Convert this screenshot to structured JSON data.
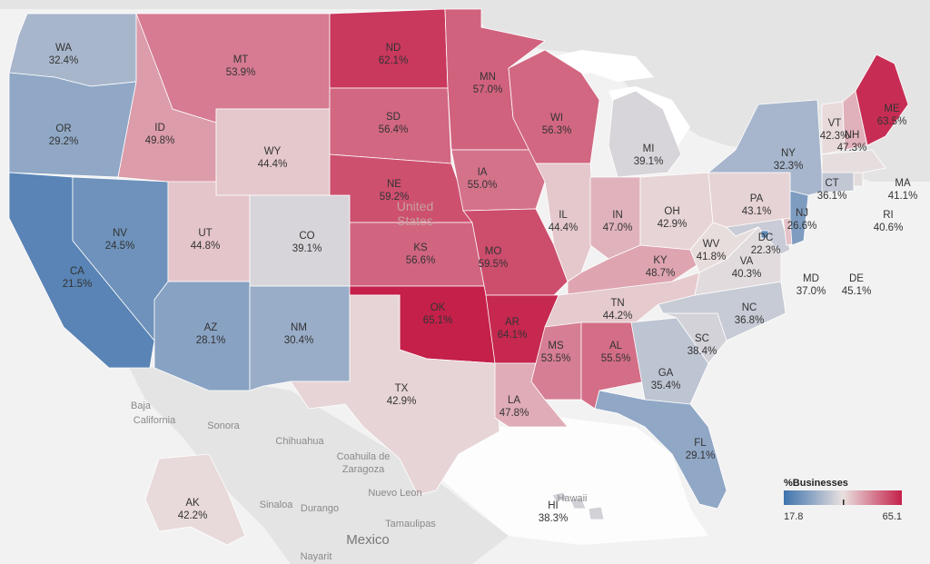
{
  "background_labels": {
    "baja": "Baja",
    "california": "California",
    "sonora": "Sonora",
    "chihuahua": "Chihuahua",
    "coahuila": "Coahuila de",
    "zaragoza": "Zaragoza",
    "nuevo_leon": "Nuevo Leon",
    "tamaulipas": "Tamaulipas",
    "sinaloa": "Sinaloa",
    "durango": "Durango",
    "nayarit": "Nayarit",
    "mexico": "Mexico",
    "united": "United",
    "states": "States",
    "hawaii": "Hawaii"
  },
  "legend": {
    "title": "%Businesses",
    "min_label": "17.8",
    "max_label": "65.1",
    "colors": {
      "low": "#3e73ad",
      "mid": "#e9e0df",
      "high": "#c4204a"
    }
  },
  "chart_data": {
    "type": "choropleth",
    "measure": "%Businesses",
    "min": 17.8,
    "max": 65.1,
    "states": [
      {
        "abbr": "WA",
        "label": "32.4%",
        "value": 32.4
      },
      {
        "abbr": "OR",
        "label": "29.2%",
        "value": 29.2
      },
      {
        "abbr": "CA",
        "label": "21.5%",
        "value": 21.5
      },
      {
        "abbr": "NV",
        "label": "24.5%",
        "value": 24.5
      },
      {
        "abbr": "ID",
        "label": "49.8%",
        "value": 49.8
      },
      {
        "abbr": "MT",
        "label": "53.9%",
        "value": 53.9
      },
      {
        "abbr": "WY",
        "label": "44.4%",
        "value": 44.4
      },
      {
        "abbr": "UT",
        "label": "44.8%",
        "value": 44.8
      },
      {
        "abbr": "CO",
        "label": "39.1%",
        "value": 39.1
      },
      {
        "abbr": "AZ",
        "label": "28.1%",
        "value": 28.1
      },
      {
        "abbr": "NM",
        "label": "30.4%",
        "value": 30.4
      },
      {
        "abbr": "ND",
        "label": "62.1%",
        "value": 62.1
      },
      {
        "abbr": "SD",
        "label": "56.4%",
        "value": 56.4
      },
      {
        "abbr": "NE",
        "label": "59.2%",
        "value": 59.2
      },
      {
        "abbr": "KS",
        "label": "56.6%",
        "value": 56.6
      },
      {
        "abbr": "OK",
        "label": "65.1%",
        "value": 65.1
      },
      {
        "abbr": "TX",
        "label": "42.9%",
        "value": 42.9
      },
      {
        "abbr": "MN",
        "label": "57.0%",
        "value": 57.0
      },
      {
        "abbr": "IA",
        "label": "55.0%",
        "value": 55.0
      },
      {
        "abbr": "MO",
        "label": "59.5%",
        "value": 59.5
      },
      {
        "abbr": "AR",
        "label": "64.1%",
        "value": 64.1
      },
      {
        "abbr": "LA",
        "label": "47.8%",
        "value": 47.8
      },
      {
        "abbr": "WI",
        "label": "56.3%",
        "value": 56.3
      },
      {
        "abbr": "IL",
        "label": "44.4%",
        "value": 44.4
      },
      {
        "abbr": "MI",
        "label": "39.1%",
        "value": 39.1
      },
      {
        "abbr": "IN",
        "label": "47.0%",
        "value": 47.0
      },
      {
        "abbr": "OH",
        "label": "42.9%",
        "value": 42.9
      },
      {
        "abbr": "KY",
        "label": "48.7%",
        "value": 48.7
      },
      {
        "abbr": "TN",
        "label": "44.2%",
        "value": 44.2
      },
      {
        "abbr": "MS",
        "label": "53.5%",
        "value": 53.5
      },
      {
        "abbr": "AL",
        "label": "55.5%",
        "value": 55.5
      },
      {
        "abbr": "GA",
        "label": "35.4%",
        "value": 35.4
      },
      {
        "abbr": "FL",
        "label": "29.1%",
        "value": 29.1
      },
      {
        "abbr": "SC",
        "label": "38.4%",
        "value": 38.4
      },
      {
        "abbr": "NC",
        "label": "36.8%",
        "value": 36.8
      },
      {
        "abbr": "VA",
        "label": "40.3%",
        "value": 40.3
      },
      {
        "abbr": "WV",
        "label": "41.8%",
        "value": 41.8
      },
      {
        "abbr": "PA",
        "label": "43.1%",
        "value": 43.1
      },
      {
        "abbr": "NY",
        "label": "32.3%",
        "value": 32.3
      },
      {
        "abbr": "VT",
        "label": "42.3%",
        "value": 42.3
      },
      {
        "abbr": "NH",
        "label": "47.3%",
        "value": 47.3
      },
      {
        "abbr": "ME",
        "label": "63.5%",
        "value": 63.5
      },
      {
        "abbr": "MA",
        "label": "41.1%",
        "value": 41.1
      },
      {
        "abbr": "RI",
        "label": "40.6%",
        "value": 40.6
      },
      {
        "abbr": "CT",
        "label": "36.1%",
        "value": 36.1
      },
      {
        "abbr": "NJ",
        "label": "26.6%",
        "value": 26.6
      },
      {
        "abbr": "DE",
        "label": "45.1%",
        "value": 45.1
      },
      {
        "abbr": "MD",
        "label": "37.0%",
        "value": 37.0
      },
      {
        "abbr": "DC",
        "label": "22.3%",
        "value": 22.3
      },
      {
        "abbr": "AK",
        "label": "42.2%",
        "value": 42.2
      },
      {
        "abbr": "HI",
        "label": "38.3%",
        "value": 38.3
      }
    ]
  }
}
